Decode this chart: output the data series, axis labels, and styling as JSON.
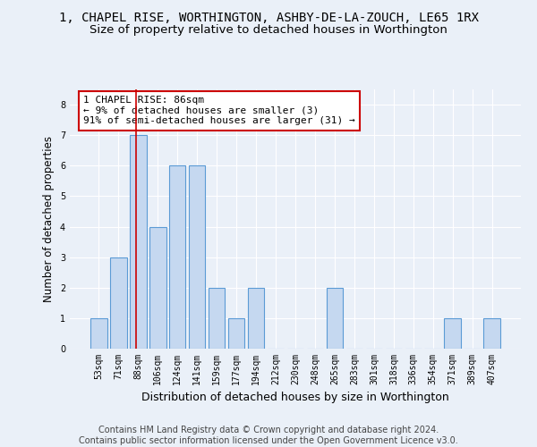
{
  "title": "1, CHAPEL RISE, WORTHINGTON, ASHBY-DE-LA-ZOUCH, LE65 1RX",
  "subtitle": "Size of property relative to detached houses in Worthington",
  "xlabel": "Distribution of detached houses by size in Worthington",
  "ylabel": "Number of detached properties",
  "categories": [
    "53sqm",
    "71sqm",
    "88sqm",
    "106sqm",
    "124sqm",
    "141sqm",
    "159sqm",
    "177sqm",
    "194sqm",
    "212sqm",
    "230sqm",
    "248sqm",
    "265sqm",
    "283sqm",
    "301sqm",
    "318sqm",
    "336sqm",
    "354sqm",
    "371sqm",
    "389sqm",
    "407sqm"
  ],
  "values": [
    1,
    3,
    7,
    4,
    6,
    6,
    2,
    1,
    2,
    0,
    0,
    0,
    2,
    0,
    0,
    0,
    0,
    0,
    1,
    0,
    1
  ],
  "bar_color": "#c5d8f0",
  "bar_edge_color": "#5b9bd5",
  "highlight_index": 2,
  "annotation_text": "1 CHAPEL RISE: 86sqm\n← 9% of detached houses are smaller (3)\n91% of semi-detached houses are larger (31) →",
  "annotation_box_color": "#ffffff",
  "annotation_box_edge": "#cc0000",
  "ylim": [
    0,
    8.5
  ],
  "yticks": [
    0,
    1,
    2,
    3,
    4,
    5,
    6,
    7,
    8
  ],
  "footer1": "Contains HM Land Registry data © Crown copyright and database right 2024.",
  "footer2": "Contains public sector information licensed under the Open Government Licence v3.0.",
  "bg_color": "#eaf0f8",
  "plot_bg": "#eaf0f8",
  "grid_color": "#ffffff",
  "title_fontsize": 10,
  "subtitle_fontsize": 9.5,
  "ylabel_fontsize": 8.5,
  "xlabel_fontsize": 9,
  "tick_fontsize": 7,
  "annot_fontsize": 8,
  "footer_fontsize": 7
}
